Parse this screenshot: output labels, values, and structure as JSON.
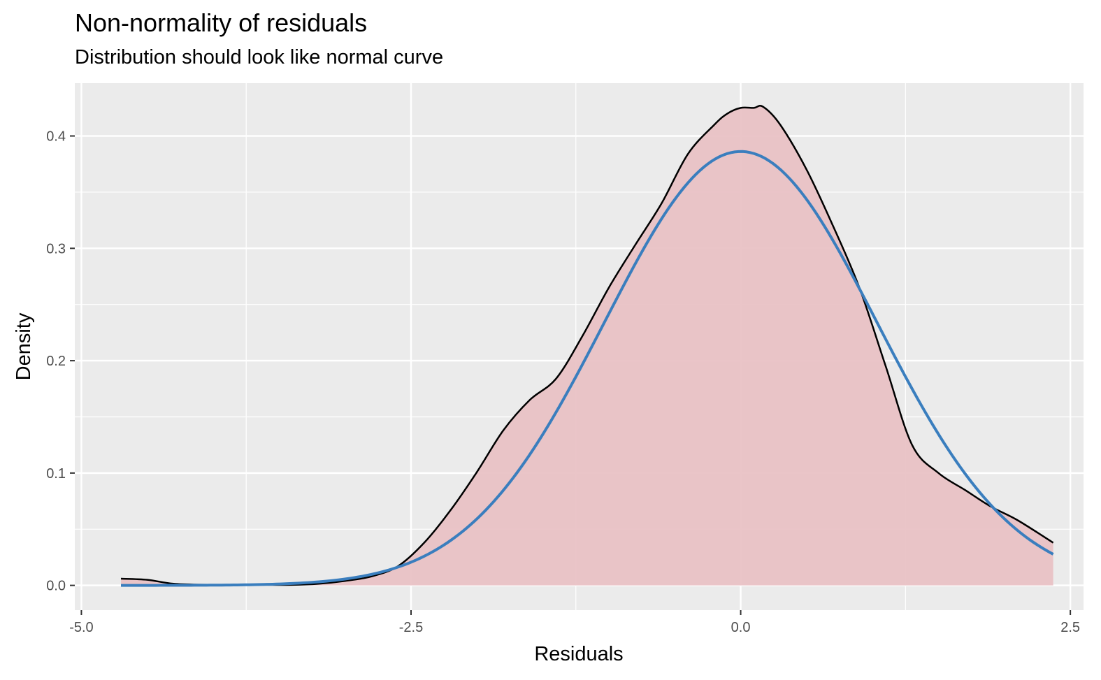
{
  "chart_data": {
    "type": "area",
    "title": "Non-normality of residuals",
    "subtitle": "Distribution should look like normal curve",
    "xlabel": "Residuals",
    "ylabel": "Density",
    "xlim": [
      -5.05,
      2.6
    ],
    "ylim": [
      -0.022,
      0.447
    ],
    "x_ticks": [
      -5.0,
      -2.5,
      0.0,
      2.5
    ],
    "x_tick_labels": [
      "-5.0",
      "-2.5",
      "0.0",
      "2.5"
    ],
    "y_ticks": [
      0.0,
      0.1,
      0.2,
      0.3,
      0.4
    ],
    "y_tick_labels": [
      "0.0",
      "0.1",
      "0.2",
      "0.3",
      "0.4"
    ],
    "grid": true,
    "legend": "none",
    "series": [
      {
        "kind": "density",
        "fill": "#e8c0c3",
        "stroke": "#000000",
        "x": [
          -4.7,
          -4.5,
          -4.3,
          -4.0,
          -3.7,
          -3.4,
          -3.2,
          -3.0,
          -2.8,
          -2.6,
          -2.4,
          -2.2,
          -2.0,
          -1.8,
          -1.6,
          -1.4,
          -1.2,
          -1.0,
          -0.8,
          -0.6,
          -0.4,
          -0.2,
          -0.1,
          0.0,
          0.1,
          0.17,
          0.3,
          0.5,
          0.7,
          0.9,
          1.1,
          1.3,
          1.5,
          1.7,
          1.9,
          2.1,
          2.37
        ],
        "y": [
          0.006,
          0.005,
          0.0015,
          0.0005,
          0.0005,
          0.0005,
          0.0015,
          0.004,
          0.008,
          0.017,
          0.038,
          0.067,
          0.101,
          0.138,
          0.165,
          0.184,
          0.222,
          0.265,
          0.303,
          0.34,
          0.384,
          0.41,
          0.42,
          0.425,
          0.425,
          0.426,
          0.41,
          0.37,
          0.32,
          0.265,
          0.195,
          0.125,
          0.1,
          0.085,
          0.07,
          0.058,
          0.038
        ]
      },
      {
        "kind": "normal",
        "stroke": "#3a7ebe",
        "mean": 0.0,
        "sd": 1.033,
        "x_range": [
          -4.7,
          2.37
        ]
      }
    ]
  }
}
